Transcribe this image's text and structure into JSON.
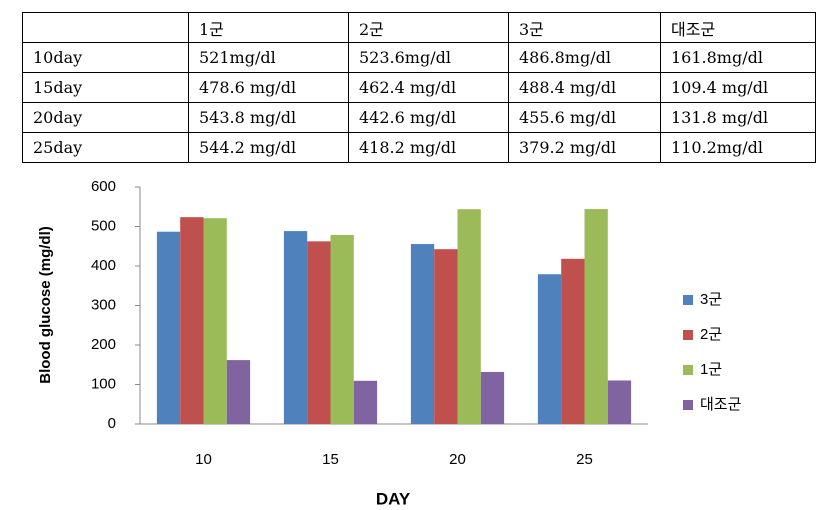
{
  "table": {
    "columns": [
      "1군",
      "2군",
      "3군",
      "대조군"
    ],
    "rows": [
      {
        "label": "10day",
        "cells": [
          "521mg/dl",
          "523.6mg/dl",
          "486.8mg/dl",
          "161.8mg/dl"
        ]
      },
      {
        "label": "15day",
        "cells": [
          "478.6 mg/dl",
          "462.4 mg/dl",
          "488.4 mg/dl",
          "109.4 mg/dl"
        ]
      },
      {
        "label": "20day",
        "cells": [
          "543.8 mg/dl",
          "442.6 mg/dl",
          "455.6 mg/dl",
          "131.8 mg/dl"
        ]
      },
      {
        "label": "25day",
        "cells": [
          "544.2 mg/dl",
          "418.2 mg/dl",
          "379.2 mg/dl",
          "110.2mg/dl"
        ]
      }
    ]
  },
  "chart_data": {
    "type": "bar",
    "x_label": "DAY",
    "y_label": "Blood glucose (mg/dl)",
    "categories": [
      "10",
      "15",
      "20",
      "25"
    ],
    "series": [
      {
        "name": "3군",
        "color": "#4f81bd",
        "values": [
          486.8,
          488.4,
          455.6,
          379.2
        ]
      },
      {
        "name": "2군",
        "color": "#c0504d",
        "values": [
          523.6,
          462.4,
          442.6,
          418.2
        ]
      },
      {
        "name": "1군",
        "color": "#9bbb59",
        "values": [
          521,
          478.6,
          543.8,
          544.2
        ]
      },
      {
        "name": "대조군",
        "color": "#8064a2",
        "values": [
          161.8,
          109.4,
          131.8,
          110.2
        ]
      }
    ],
    "ylim": [
      0,
      600
    ],
    "yticks": [
      0,
      100,
      200,
      300,
      400,
      500,
      600
    ],
    "grid": false,
    "legend": "right"
  }
}
